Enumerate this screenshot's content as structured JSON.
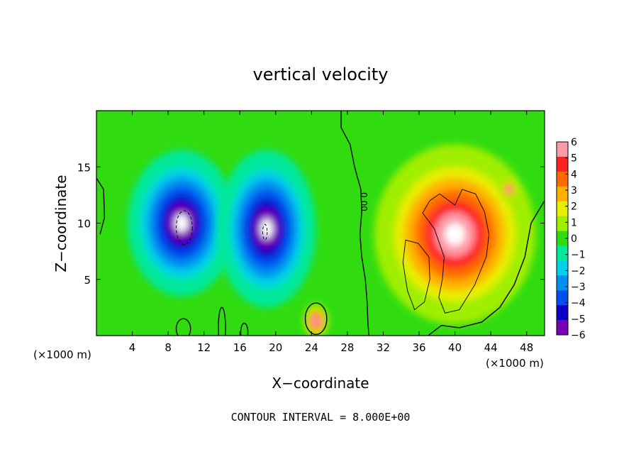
{
  "chart_data": {
    "type": "heatmap",
    "title": "vertical velocity",
    "xlabel": "X−coordinate",
    "ylabel": "Z−coordinate",
    "x_unit_left": "(×1000 m)",
    "x_unit_right": "(×1000 m)",
    "footer": "CONTOUR INTERVAL = 8.000E+00",
    "xlim": [
      0,
      50
    ],
    "ylim": [
      0,
      20
    ],
    "x_ticks": [
      4,
      8,
      12,
      16,
      20,
      24,
      28,
      32,
      36,
      40,
      44,
      48
    ],
    "x_tick_labels": [
      "4",
      "8",
      "12",
      "16",
      "20",
      "24",
      "28",
      "32",
      "36",
      "40",
      "44",
      "48"
    ],
    "y_ticks": [
      5,
      10,
      15
    ],
    "y_tick_labels": [
      "5",
      "10",
      "15"
    ],
    "contour_label": "0.00",
    "colorbar": {
      "levels": [
        6,
        5,
        4,
        3,
        2,
        1,
        0,
        -1,
        -2,
        -3,
        -4,
        -5,
        -6
      ],
      "labels": [
        "6",
        "5",
        "4",
        "3",
        "2",
        "1",
        "0",
        "−1",
        "−2",
        "−3",
        "−4",
        "−5",
        "−6"
      ],
      "colors": [
        "#ff9aa8",
        "#ff2020",
        "#ff6a00",
        "#ffb000",
        "#e8ee00",
        "#a0ee00",
        "#30dc10",
        "#00e89c",
        "#00d0e8",
        "#0090f0",
        "#0050f0",
        "#0a00c8",
        "#7800b4"
      ]
    },
    "features": [
      {
        "kind": "downdraft",
        "x": 9.5,
        "z": 10,
        "rx": 6,
        "rz": 6.5,
        "peak": -6
      },
      {
        "kind": "downdraft",
        "x": 19,
        "z": 9.5,
        "rx": 5.5,
        "rz": 7,
        "peak": -6
      },
      {
        "kind": "updraft",
        "x": 40,
        "z": 9,
        "rx": 9,
        "rz": 8,
        "peak": 6
      },
      {
        "kind": "updraft",
        "x": 24.5,
        "z": 1.3,
        "rx": 1.4,
        "rz": 1.5,
        "peak": 6
      },
      {
        "kind": "updraft",
        "x": 46,
        "z": 13,
        "rx": 1,
        "rz": 1,
        "peak": 5
      }
    ]
  }
}
